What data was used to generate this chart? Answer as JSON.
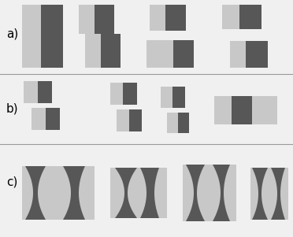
{
  "bg_color": "#f0f0f0",
  "light_gray": "#c8c8c8",
  "dark_gray": "#575757",
  "separator_color": "#999999",
  "label_a": "a)",
  "label_b": "b)",
  "label_c": "c)",
  "figsize": [
    3.72,
    3.01
  ],
  "dpi": 100
}
